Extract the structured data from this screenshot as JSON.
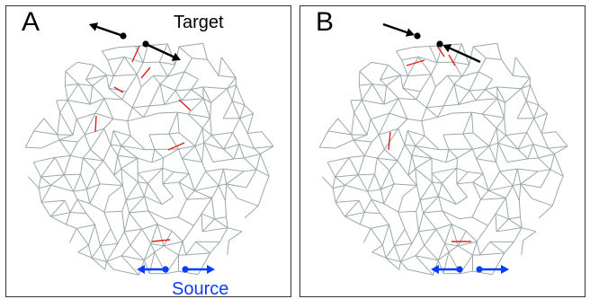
{
  "figure": {
    "panels": [
      {
        "id": "A",
        "letter": "A",
        "target_label": "Target",
        "source_label": "Source",
        "target_arrows": "outward",
        "source_arrows": "outward"
      },
      {
        "id": "B",
        "letter": "B",
        "target_label": "",
        "source_label": "",
        "target_arrows": "inward",
        "source_arrows": "outward"
      }
    ]
  },
  "colors": {
    "mesh": "#9aa8a8",
    "highlight": "#e0201c",
    "source": "#0a3cff",
    "target": "#000000",
    "frame": "#333333"
  },
  "icons": {
    "target_arrow": "black-arrow-icon",
    "source_arrow": "blue-double-arrow-icon"
  }
}
